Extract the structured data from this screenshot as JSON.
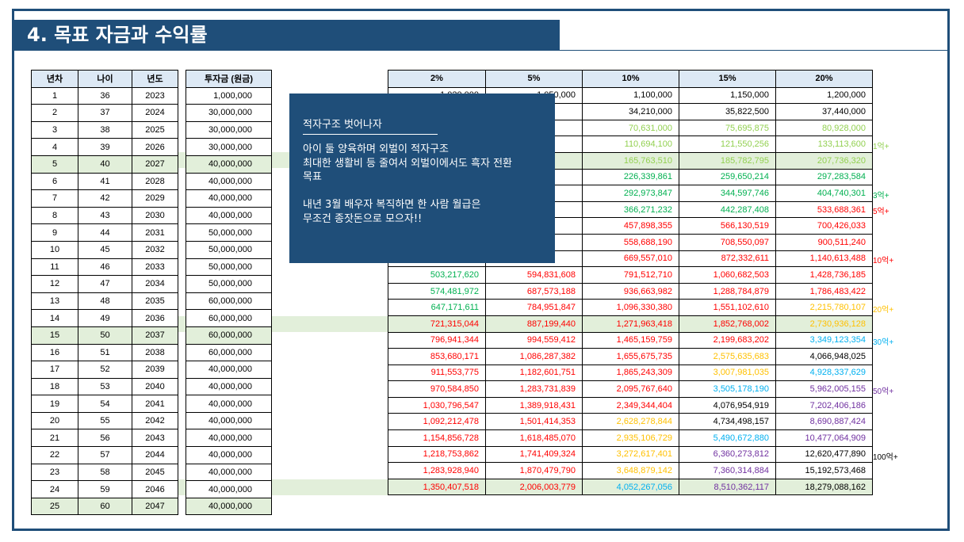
{
  "title": "4. 목표 자금과 수익률",
  "left_table": {
    "headers": [
      "년차",
      "나이",
      "년도"
    ],
    "invest_header": "투자금 (원금)",
    "rows": [
      [
        "1",
        "36",
        "2023",
        "1,000,000"
      ],
      [
        "2",
        "37",
        "2024",
        "30,000,000"
      ],
      [
        "3",
        "38",
        "2025",
        "30,000,000"
      ],
      [
        "4",
        "39",
        "2026",
        "30,000,000"
      ],
      [
        "5",
        "40",
        "2027",
        "40,000,000"
      ],
      [
        "6",
        "41",
        "2028",
        "40,000,000"
      ],
      [
        "7",
        "42",
        "2029",
        "40,000,000"
      ],
      [
        "8",
        "43",
        "2030",
        "40,000,000"
      ],
      [
        "9",
        "44",
        "2031",
        "50,000,000"
      ],
      [
        "10",
        "45",
        "2032",
        "50,000,000"
      ],
      [
        "11",
        "46",
        "2033",
        "50,000,000"
      ],
      [
        "12",
        "47",
        "2034",
        "50,000,000"
      ],
      [
        "13",
        "48",
        "2035",
        "60,000,000"
      ],
      [
        "14",
        "49",
        "2036",
        "60,000,000"
      ],
      [
        "15",
        "50",
        "2037",
        "60,000,000"
      ],
      [
        "16",
        "51",
        "2038",
        "60,000,000"
      ],
      [
        "17",
        "52",
        "2039",
        "40,000,000"
      ],
      [
        "18",
        "53",
        "2040",
        "40,000,000"
      ],
      [
        "19",
        "54",
        "2041",
        "40,000,000"
      ],
      [
        "20",
        "55",
        "2042",
        "40,000,000"
      ],
      [
        "21",
        "56",
        "2043",
        "40,000,000"
      ],
      [
        "22",
        "57",
        "2044",
        "40,000,000"
      ],
      [
        "23",
        "58",
        "2045",
        "40,000,000"
      ],
      [
        "24",
        "59",
        "2046",
        "40,000,000"
      ],
      [
        "25",
        "60",
        "2047",
        "40,000,000"
      ]
    ]
  },
  "right_table": {
    "headers": [
      "2%",
      "5%",
      "10%",
      "15%",
      "20%"
    ],
    "colors": {
      "k": "#000000",
      "lg": "#92d050",
      "g": "#00b050",
      "r": "#ff0000",
      "o": "#ffc000",
      "b": "#00b0f0",
      "p": "#7030a0"
    },
    "rows": [
      [
        [
          "1,020,000",
          "k"
        ],
        [
          "1,050,000",
          "k"
        ],
        [
          "1,100,000",
          "k"
        ],
        [
          "1,150,000",
          "k"
        ],
        [
          "1,200,000",
          "k"
        ]
      ],
      [
        [
          "",
          "k"
        ],
        [
          "",
          "k"
        ],
        [
          "34,210,000",
          "k"
        ],
        [
          "35,822,500",
          "k"
        ],
        [
          "37,440,000",
          "k"
        ]
      ],
      [
        [
          "",
          "k"
        ],
        [
          "",
          "k"
        ],
        [
          "70,631,000",
          "lg"
        ],
        [
          "75,695,875",
          "lg"
        ],
        [
          "80,928,000",
          "lg"
        ]
      ],
      [
        [
          "",
          "k"
        ],
        [
          "",
          "k"
        ],
        [
          "110,694,100",
          "lg"
        ],
        [
          "121,550,256",
          "lg"
        ],
        [
          "133,113,600",
          "lg"
        ]
      ],
      [
        [
          "",
          "k"
        ],
        [
          "",
          "k"
        ],
        [
          "165,763,510",
          "lg"
        ],
        [
          "185,782,795",
          "lg"
        ],
        [
          "207,736,320",
          "lg"
        ]
      ],
      [
        [
          "",
          "k"
        ],
        [
          "",
          "k"
        ],
        [
          "226,339,861",
          "g"
        ],
        [
          "259,650,214",
          "g"
        ],
        [
          "297,283,584",
          "g"
        ]
      ],
      [
        [
          "",
          "k"
        ],
        [
          "",
          "k"
        ],
        [
          "292,973,847",
          "g"
        ],
        [
          "344,597,746",
          "g"
        ],
        [
          "404,740,301",
          "g"
        ]
      ],
      [
        [
          "",
          "k"
        ],
        [
          "",
          "k"
        ],
        [
          "366,271,232",
          "g"
        ],
        [
          "442,287,408",
          "g"
        ],
        [
          "533,688,361",
          "r"
        ]
      ],
      [
        [
          "",
          "k"
        ],
        [
          "",
          "k"
        ],
        [
          "457,898,355",
          "r"
        ],
        [
          "566,130,519",
          "r"
        ],
        [
          "700,426,033",
          "r"
        ]
      ],
      [
        [
          "",
          "k"
        ],
        [
          "",
          "k"
        ],
        [
          "558,688,190",
          "r"
        ],
        [
          "708,550,097",
          "r"
        ],
        [
          "900,511,240",
          "r"
        ]
      ],
      [
        [
          "",
          "k"
        ],
        [
          "",
          "k"
        ],
        [
          "669,557,010",
          "r"
        ],
        [
          "872,332,611",
          "r"
        ],
        [
          "1,140,613,488",
          "r"
        ]
      ],
      [
        [
          "503,217,620",
          "g"
        ],
        [
          "594,831,608",
          "r"
        ],
        [
          "791,512,710",
          "r"
        ],
        [
          "1,060,682,503",
          "r"
        ],
        [
          "1,428,736,185",
          "r"
        ]
      ],
      [
        [
          "574,481,972",
          "g"
        ],
        [
          "687,573,188",
          "r"
        ],
        [
          "936,663,982",
          "r"
        ],
        [
          "1,288,784,879",
          "r"
        ],
        [
          "1,786,483,422",
          "r"
        ]
      ],
      [
        [
          "647,171,611",
          "g"
        ],
        [
          "784,951,847",
          "r"
        ],
        [
          "1,096,330,380",
          "r"
        ],
        [
          "1,551,102,610",
          "r"
        ],
        [
          "2,215,780,107",
          "o"
        ]
      ],
      [
        [
          "721,315,044",
          "r"
        ],
        [
          "887,199,440",
          "r"
        ],
        [
          "1,271,963,418",
          "r"
        ],
        [
          "1,852,768,002",
          "r"
        ],
        [
          "2,730,936,128",
          "o"
        ]
      ],
      [
        [
          "796,941,344",
          "r"
        ],
        [
          "994,559,412",
          "r"
        ],
        [
          "1,465,159,759",
          "r"
        ],
        [
          "2,199,683,202",
          "r"
        ],
        [
          "3,349,123,354",
          "b"
        ]
      ],
      [
        [
          "853,680,171",
          "r"
        ],
        [
          "1,086,287,382",
          "r"
        ],
        [
          "1,655,675,735",
          "r"
        ],
        [
          "2,575,635,683",
          "o"
        ],
        [
          "4,066,948,025",
          "k"
        ]
      ],
      [
        [
          "911,553,775",
          "r"
        ],
        [
          "1,182,601,751",
          "r"
        ],
        [
          "1,865,243,309",
          "r"
        ],
        [
          "3,007,981,035",
          "o"
        ],
        [
          "4,928,337,629",
          "b"
        ]
      ],
      [
        [
          "970,584,850",
          "r"
        ],
        [
          "1,283,731,839",
          "r"
        ],
        [
          "2,095,767,640",
          "r"
        ],
        [
          "3,505,178,190",
          "b"
        ],
        [
          "5,962,005,155",
          "p"
        ]
      ],
      [
        [
          "1,030,796,547",
          "r"
        ],
        [
          "1,389,918,431",
          "r"
        ],
        [
          "2,349,344,404",
          "r"
        ],
        [
          "4,076,954,919",
          "k"
        ],
        [
          "7,202,406,186",
          "p"
        ]
      ],
      [
        [
          "1,092,212,478",
          "r"
        ],
        [
          "1,501,414,353",
          "r"
        ],
        [
          "2,628,278,844",
          "o"
        ],
        [
          "4,734,498,157",
          "k"
        ],
        [
          "8,690,887,424",
          "p"
        ]
      ],
      [
        [
          "1,154,856,728",
          "r"
        ],
        [
          "1,618,485,070",
          "r"
        ],
        [
          "2,935,106,729",
          "o"
        ],
        [
          "5,490,672,880",
          "b"
        ],
        [
          "10,477,064,909",
          "p"
        ]
      ],
      [
        [
          "1,218,753,862",
          "r"
        ],
        [
          "1,741,409,324",
          "r"
        ],
        [
          "3,272,617,401",
          "o"
        ],
        [
          "6,360,273,812",
          "p"
        ],
        [
          "12,620,477,890",
          "k"
        ]
      ],
      [
        [
          "1,283,928,940",
          "r"
        ],
        [
          "1,870,479,790",
          "r"
        ],
        [
          "3,648,879,142",
          "o"
        ],
        [
          "7,360,314,884",
          "p"
        ],
        [
          "15,192,573,468",
          "k"
        ]
      ],
      [
        [
          "1,350,407,518",
          "r"
        ],
        [
          "2,006,003,779",
          "r"
        ],
        [
          "4,052,267,056",
          "b"
        ],
        [
          "8,510,362,117",
          "p"
        ],
        [
          "18,279,088,162",
          "k"
        ]
      ]
    ]
  },
  "milestones": [
    {
      "row": 4,
      "label": "1억+",
      "color": "lg"
    },
    {
      "row": 7,
      "label": "3억+",
      "color": "g"
    },
    {
      "row": 8,
      "label": "5억+",
      "color": "r"
    },
    {
      "row": 11,
      "label": "10억+",
      "color": "r"
    },
    {
      "row": 14,
      "label": "20억+",
      "color": "o"
    },
    {
      "row": 16,
      "label": "30억+",
      "color": "b"
    },
    {
      "row": 19,
      "label": "50억+",
      "color": "p"
    },
    {
      "row": 23,
      "label": "100억+",
      "color": "k"
    }
  ],
  "highlight_rows": [
    5,
    15,
    25
  ],
  "popup": {
    "title": "적자구조 벗어나자",
    "body": "아이 둘  양육하며 외벌이 적자구조\n최대한 생활비 등 줄여서 외벌이에서도 흑자 전환\n목표\n\n내년 3월 배우자 복직하면 한 사람 월급은\n무조건 종잣돈으로 모으자!!"
  }
}
